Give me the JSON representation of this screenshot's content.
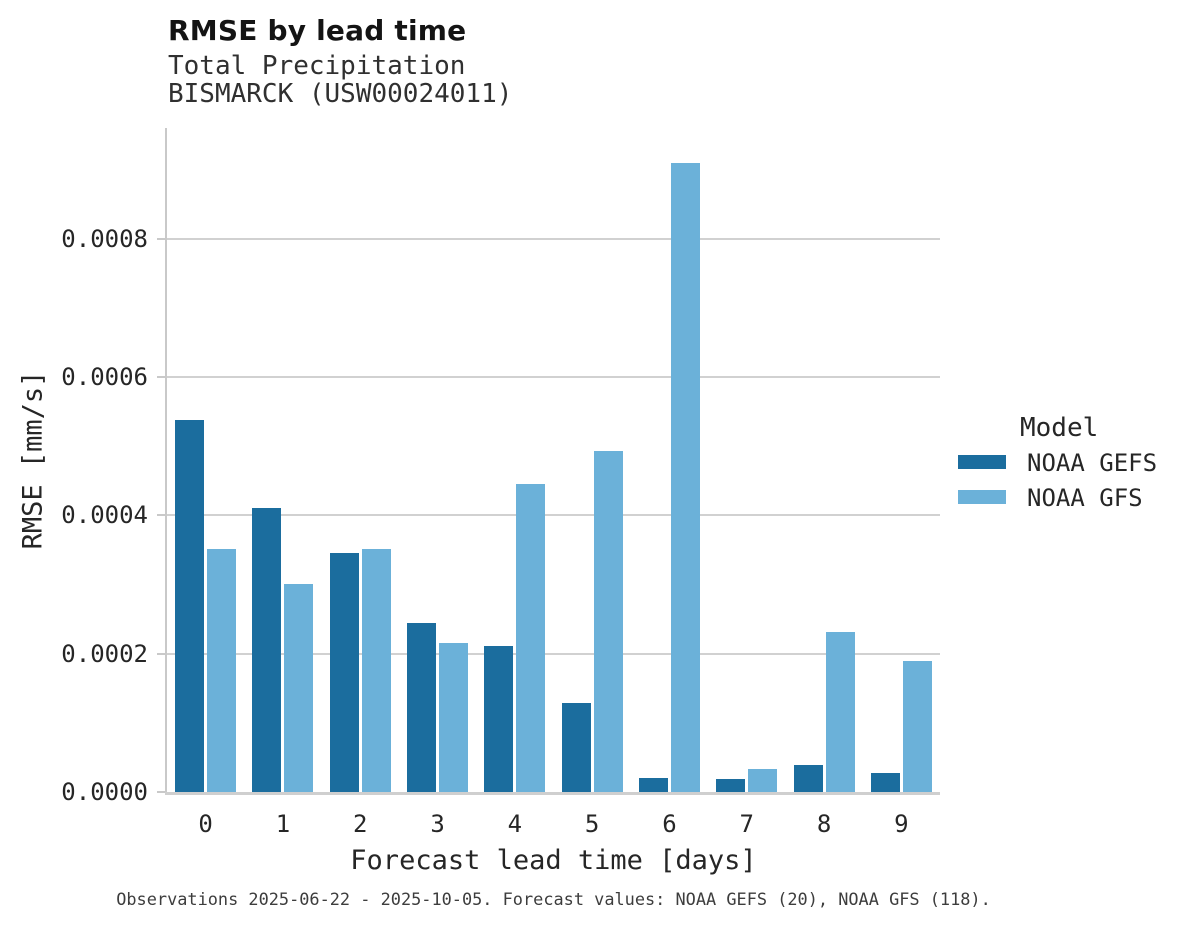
{
  "header": {
    "title": "RMSE by lead time",
    "subtitle_line1": "Total Precipitation",
    "subtitle_line2": "BISMARCK (USW00024011)"
  },
  "legend": {
    "title": "Model",
    "items": [
      {
        "label": "NOAA GEFS",
        "color": "#1b6d9e"
      },
      {
        "label": "NOAA GFS",
        "color": "#6bb1d9"
      }
    ]
  },
  "caption": "Observations 2025-06-22 - 2025-10-05. Forecast values: NOAA GEFS (20), NOAA GFS (118).",
  "colors": {
    "grid": "#d1d1d1",
    "axis": "#c9c9c9",
    "text": "#262626",
    "caption_text": "#3d3d3d",
    "series_dark": "#1b6d9e",
    "series_light": "#6bb1d9"
  },
  "chart_data": {
    "type": "bar",
    "title": "RMSE by lead time",
    "subtitle": [
      "Total Precipitation",
      "BISMARCK (USW00024011)"
    ],
    "xlabel": "Forecast lead time [days]",
    "ylabel": "RMSE [mm/s]",
    "categories": [
      "0",
      "1",
      "2",
      "3",
      "4",
      "5",
      "6",
      "7",
      "8",
      "9"
    ],
    "series": [
      {
        "name": "NOAA GEFS",
        "color": "#1b6d9e",
        "values": [
          0.000538,
          0.000411,
          0.000346,
          0.000245,
          0.000211,
          0.000129,
          2.05e-05,
          1.9e-05,
          3.95e-05,
          2.8e-05
        ]
      },
      {
        "name": "NOAA GFS",
        "color": "#6bb1d9",
        "values": [
          0.000351,
          0.000301,
          0.000351,
          0.000216,
          0.000445,
          0.000493,
          0.00091,
          3.35e-05,
          0.000232,
          0.00019
        ]
      }
    ],
    "ylim": [
      0,
      0.00096
    ],
    "yticks": [
      0,
      0.0002,
      0.0004,
      0.0006,
      0.0008
    ],
    "ytick_labels": [
      "0.0000",
      "0.0002",
      "0.0004",
      "0.0006",
      "0.0008"
    ],
    "grid": "horizontal",
    "legend_title": "Model",
    "legend_position": "right"
  }
}
